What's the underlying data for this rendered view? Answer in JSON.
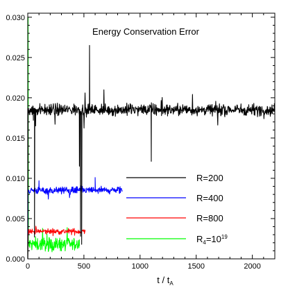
{
  "chart_data": {
    "type": "line",
    "title": "Energy Conservation Error",
    "xlabel": {
      "main": "t / t",
      "sub": "A"
    },
    "ylabel": "",
    "xlim": [
      0,
      2200
    ],
    "ylim": [
      0,
      0.0305
    ],
    "x_ticks": [
      0,
      500,
      1000,
      1500,
      2000
    ],
    "x_tick_labels": [
      "0",
      "500",
      "1000",
      "1500",
      "2000"
    ],
    "y_ticks": [
      0.0,
      0.005,
      0.01,
      0.015,
      0.02,
      0.025,
      0.03
    ],
    "y_tick_labels": [
      "0.000",
      "0.005",
      "0.010",
      "0.015",
      "0.020",
      "0.025",
      "0.030"
    ],
    "grid": false,
    "legend_position": "center-right",
    "series": [
      {
        "label_main": "R=200",
        "label_sup": "",
        "color": "#000000",
        "x_range": [
          0,
          2200
        ],
        "mean": 0.0185,
        "noise": 0.0007,
        "points": [
          [
            0,
            0.0
          ],
          [
            4,
            0.0178
          ],
          [
            30,
            0.0182
          ],
          [
            50,
            0.0172
          ],
          [
            60,
            0.0027
          ],
          [
            70,
            0.0165
          ],
          [
            150,
            0.0183
          ],
          [
            230,
            0.0188
          ],
          [
            380,
            0.0184
          ],
          [
            460,
            0.0115
          ],
          [
            470,
            0.0028
          ],
          [
            480,
            0.0018
          ],
          [
            485,
            0.0187
          ],
          [
            550,
            0.0265
          ],
          [
            560,
            0.0186
          ],
          [
            800,
            0.0188
          ],
          [
            1100,
            0.0121
          ],
          [
            1110,
            0.0184
          ],
          [
            1500,
            0.0186
          ],
          [
            1900,
            0.0187
          ],
          [
            2200,
            0.0185
          ]
        ]
      },
      {
        "label_main": "R=400",
        "label_sup": "",
        "color": "#0000ff",
        "x_range": [
          0,
          840
        ],
        "mean": 0.0085,
        "noise": 0.00045,
        "points": [
          [
            0,
            0.0
          ],
          [
            4,
            0.0085
          ],
          [
            60,
            0.0084
          ],
          [
            100,
            0.0097
          ],
          [
            200,
            0.0086
          ],
          [
            400,
            0.0085
          ],
          [
            600,
            0.0101
          ],
          [
            620,
            0.0086
          ],
          [
            840,
            0.0085
          ]
        ]
      },
      {
        "label_main": "R=800",
        "label_sup": "",
        "color": "#ff0000",
        "x_range": [
          0,
          510
        ],
        "mean": 0.0034,
        "noise": 0.00035,
        "points": [
          [
            0,
            0.0
          ],
          [
            4,
            0.0036
          ],
          [
            60,
            0.0033
          ],
          [
            300,
            0.0035
          ],
          [
            510,
            0.0034
          ]
        ]
      },
      {
        "label_main": "R",
        "label_sub": "4",
        "label_eq": "=10",
        "label_sup": "19",
        "color": "#00ff00",
        "x_range": [
          0,
          460
        ],
        "mean": 0.0018,
        "noise": 0.0008,
        "points": [
          [
            0,
            0.0
          ],
          [
            3,
            0.03
          ],
          [
            10,
            0.0019
          ],
          [
            60,
            0.0017
          ],
          [
            300,
            0.0018
          ],
          [
            460,
            0.0016
          ]
        ]
      }
    ]
  }
}
